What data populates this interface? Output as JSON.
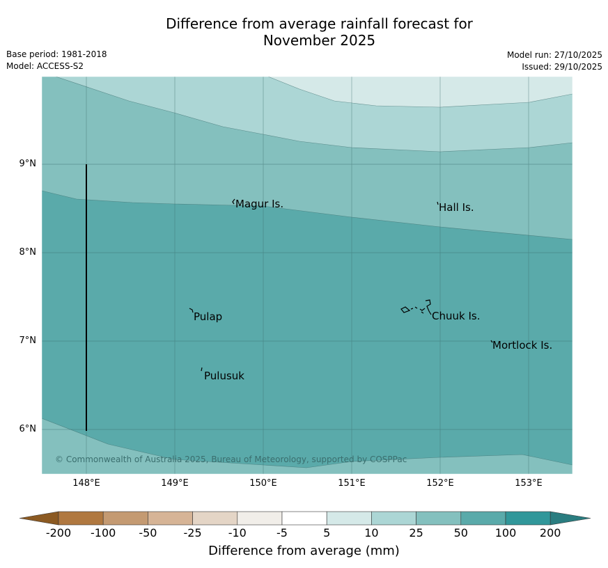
{
  "title": {
    "line1": "Difference from average rainfall forecast for",
    "line2": "November 2025"
  },
  "meta": {
    "base_period": "Base period: 1981-2018",
    "model": "Model: ACCESS-S2",
    "model_run": "Model run: 27/10/2025",
    "issued": "Issued: 29/10/2025"
  },
  "axes": {
    "latitude_ticks": [
      "9°N",
      "8°N",
      "7°N",
      "6°N"
    ],
    "longitude_ticks": [
      "148°E",
      "149°E",
      "150°E",
      "151°E",
      "152°E",
      "153°E"
    ]
  },
  "places": {
    "magur": "Magur Is.",
    "hall": "Hall Is.",
    "pulap": "Pulap",
    "chuuk": "Chuuk Is.",
    "mortlock": "Mortlock Is.",
    "pulusuk": "Pulusuk"
  },
  "credit": "© Commonwealth of Australia 2025, Bureau of Meteorology, supported by COSPPac",
  "colorbar": {
    "title": "Difference from average (mm)",
    "labels": [
      "-200",
      "-100",
      "-50",
      "-25",
      "-10",
      "-5",
      "5",
      "10",
      "25",
      "50",
      "100",
      "200"
    ],
    "colors": [
      "#8c5a22",
      "#b07840",
      "#c49a72",
      "#d6b496",
      "#e4d5c6",
      "#f1eee9",
      "#ffffff",
      "#d5e9e8",
      "#acd6d5",
      "#84c0be",
      "#5aaaaa",
      "#31979a",
      "#2a7d80"
    ]
  }
}
